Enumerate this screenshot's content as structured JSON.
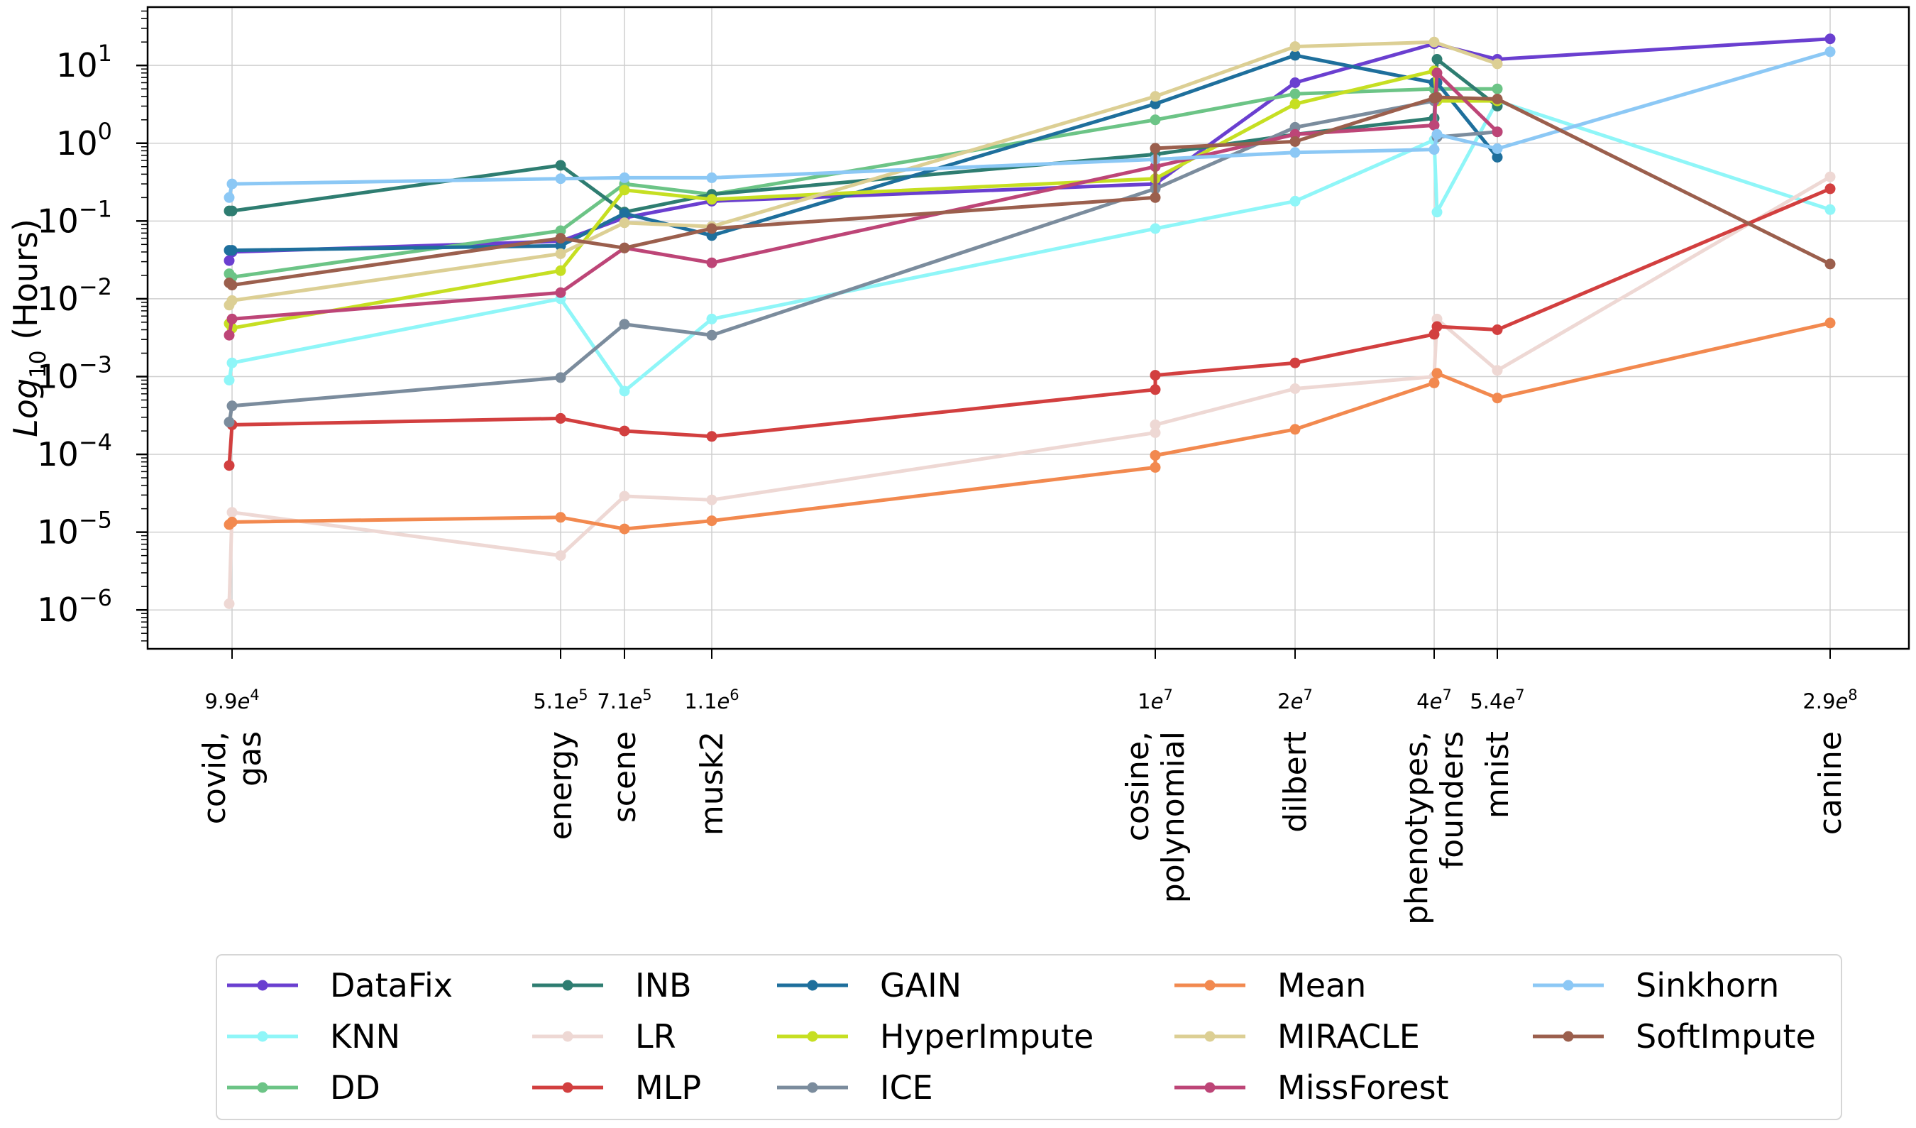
{
  "chart_data": {
    "type": "line",
    "title": "",
    "xlabel": "",
    "ylabel_main": "Log",
    "ylabel_sub": "10",
    "ylabel_rest": " (Hours)",
    "y_scale": "log",
    "ylim_exp": [
      -6.5,
      1.75
    ],
    "grid": true,
    "y_ticks": [
      {
        "exp": -6,
        "base": "10",
        "sup": "−6"
      },
      {
        "exp": -5,
        "base": "10",
        "sup": "−5"
      },
      {
        "exp": -4,
        "base": "10",
        "sup": "−4"
      },
      {
        "exp": -3,
        "base": "10",
        "sup": "−3"
      },
      {
        "exp": -2,
        "base": "10",
        "sup": "−2"
      },
      {
        "exp": -1,
        "base": "10",
        "sup": "−1"
      },
      {
        "exp": 0,
        "base": "10",
        "sup": "0"
      },
      {
        "exp": 1,
        "base": "10",
        "sup": "1"
      }
    ],
    "x_ticks": [
      {
        "pos": 0,
        "mant": "9.9",
        "exp": "4",
        "names": [
          "covid,",
          "gas"
        ]
      },
      {
        "pos": 1,
        "mant": "5.1",
        "exp": "5",
        "names": [
          "energy"
        ]
      },
      {
        "pos": 2,
        "mant": "7.1",
        "exp": "5",
        "names": [
          "scene"
        ]
      },
      {
        "pos": 3,
        "mant": "1.1",
        "exp": "6",
        "names": [
          "musk2"
        ]
      },
      {
        "pos": 4,
        "mant": "1",
        "exp": "7",
        "names": [
          "cosine,",
          "polynomial"
        ]
      },
      {
        "pos": 5,
        "mant": "2",
        "exp": "7",
        "names": [
          "dilbert"
        ]
      },
      {
        "pos": 6,
        "mant": "4",
        "exp": "7",
        "names": [
          "phenotypes,",
          "founders"
        ]
      },
      {
        "pos": 7,
        "mant": "5.4",
        "exp": "7",
        "names": [
          "mnist"
        ]
      },
      {
        "pos": 8,
        "mant": "2.9",
        "exp": "8",
        "names": [
          "canine"
        ]
      }
    ],
    "legend_position": "bottom-center",
    "series": [
      {
        "name": "DataFix",
        "color": "#6a3fd0",
        "points": [
          [
            -0.15,
            0.031
          ],
          [
            0,
            0.04
          ],
          [
            1,
            0.055
          ],
          [
            2,
            0.11
          ],
          [
            3,
            0.18
          ],
          [
            4,
            0.3
          ],
          [
            5,
            6
          ],
          [
            6,
            19
          ],
          [
            7,
            12
          ],
          [
            8,
            22
          ]
        ]
      },
      {
        "name": "KNN",
        "color": "#8ff6f8",
        "points": [
          [
            -0.15,
            0.0009
          ],
          [
            0,
            0.0015
          ],
          [
            1,
            0.01
          ],
          [
            2,
            0.00065
          ],
          [
            3,
            0.0055
          ],
          [
            4,
            0.08
          ],
          [
            5,
            0.18
          ],
          [
            6,
            1.1
          ],
          [
            6.15,
            0.13
          ],
          [
            7,
            3.5
          ],
          [
            8,
            0.14
          ]
        ]
      },
      {
        "name": "DD",
        "color": "#6cc486",
        "points": [
          [
            -0.15,
            0.021
          ],
          [
            0,
            0.019
          ],
          [
            1,
            0.075
          ],
          [
            2,
            0.3
          ],
          [
            3,
            0.22
          ],
          [
            4,
            2
          ],
          [
            5,
            4.3
          ],
          [
            6,
            5
          ],
          [
            7,
            5
          ]
        ]
      },
      {
        "name": "INB",
        "color": "#2e7d71",
        "points": [
          [
            -0.15,
            0.135
          ],
          [
            0,
            0.135
          ],
          [
            1,
            0.52
          ],
          [
            2,
            0.13
          ],
          [
            3,
            0.22
          ],
          [
            4,
            0.72
          ],
          [
            5,
            1.3
          ],
          [
            6,
            2.1
          ],
          [
            6.15,
            12
          ],
          [
            7,
            3
          ]
        ]
      },
      {
        "name": "LR",
        "color": "#eed8d4",
        "points": [
          [
            -0.15,
            1.2e-06
          ],
          [
            0,
            1.8e-05
          ],
          [
            1,
            5e-06
          ],
          [
            2,
            2.9e-05
          ],
          [
            3,
            2.6e-05
          ],
          [
            4,
            0.00019
          ],
          [
            4,
            0.00024
          ],
          [
            5,
            0.0007
          ],
          [
            6,
            0.001
          ],
          [
            6.15,
            0.0055
          ],
          [
            7,
            0.0012
          ],
          [
            8,
            0.37
          ]
        ]
      },
      {
        "name": "MLP",
        "color": "#d23f3f",
        "points": [
          [
            -0.15,
            7.2e-05
          ],
          [
            0,
            0.00024
          ],
          [
            1,
            0.00029
          ],
          [
            2,
            0.0002
          ],
          [
            3,
            0.00017
          ],
          [
            4,
            0.00068
          ],
          [
            4,
            0.00104
          ],
          [
            5,
            0.0015
          ],
          [
            6,
            0.0035
          ],
          [
            6.15,
            0.0044
          ],
          [
            7,
            0.004
          ],
          [
            8,
            0.26
          ]
        ]
      },
      {
        "name": "GAIN",
        "color": "#1e6f9c",
        "points": [
          [
            -0.15,
            0.042
          ],
          [
            0,
            0.042
          ],
          [
            1,
            0.048
          ],
          [
            2,
            0.125
          ],
          [
            3,
            0.065
          ],
          [
            4,
            3.2
          ],
          [
            5,
            13.5
          ],
          [
            6,
            6
          ],
          [
            6.15,
            6
          ],
          [
            7,
            0.66
          ]
        ]
      },
      {
        "name": "HyperImpute",
        "color": "#c6df22",
        "points": [
          [
            -0.15,
            0.0048
          ],
          [
            0,
            0.0042
          ],
          [
            1,
            0.023
          ],
          [
            2,
            0.25
          ],
          [
            3,
            0.19
          ],
          [
            4,
            0.35
          ],
          [
            5,
            3.2
          ],
          [
            6,
            8.5
          ],
          [
            6.15,
            3.5
          ],
          [
            7,
            3.5
          ]
        ]
      },
      {
        "name": "ICE",
        "color": "#7b8c9d",
        "points": [
          [
            -0.15,
            0.00026
          ],
          [
            0,
            0.00042
          ],
          [
            1,
            0.00097
          ],
          [
            2,
            0.0047
          ],
          [
            3,
            0.0034
          ],
          [
            4,
            0.26
          ],
          [
            5,
            1.6
          ],
          [
            6,
            3.5
          ],
          [
            6.15,
            1.2
          ],
          [
            7,
            1.4
          ]
        ]
      },
      {
        "name": "Mean",
        "color": "#f2894f",
        "points": [
          [
            -0.15,
            1.25e-05
          ],
          [
            0,
            1.35e-05
          ],
          [
            1,
            1.55e-05
          ],
          [
            2,
            1.1e-05
          ],
          [
            3,
            1.4e-05
          ],
          [
            4,
            6.8e-05
          ],
          [
            4,
            9.7e-05
          ],
          [
            5,
            0.00021
          ],
          [
            6,
            0.00083
          ],
          [
            6.15,
            0.0011
          ],
          [
            7,
            0.00053
          ],
          [
            8,
            0.0049
          ]
        ]
      },
      {
        "name": "MIRACLE",
        "color": "#dccf94",
        "points": [
          [
            -0.15,
            0.0083
          ],
          [
            0,
            0.0095
          ],
          [
            1,
            0.038
          ],
          [
            2,
            0.095
          ],
          [
            3,
            0.085
          ],
          [
            4,
            4
          ],
          [
            5,
            17.5
          ],
          [
            6,
            20
          ],
          [
            7,
            10.5
          ]
        ]
      },
      {
        "name": "MissForest",
        "color": "#bd4577",
        "points": [
          [
            -0.15,
            0.0034
          ],
          [
            0,
            0.0055
          ],
          [
            1,
            0.012
          ],
          [
            2,
            0.045
          ],
          [
            3,
            0.029
          ],
          [
            4,
            0.5
          ],
          [
            5,
            1.3
          ],
          [
            6,
            1.7
          ],
          [
            6.15,
            8
          ],
          [
            7,
            1.4
          ]
        ]
      },
      {
        "name": "Sinkhorn",
        "color": "#8cc8f5",
        "points": [
          [
            -0.15,
            0.2
          ],
          [
            0,
            0.3
          ],
          [
            1,
            0.35
          ],
          [
            2,
            0.36
          ],
          [
            3,
            0.36
          ],
          [
            4,
            0.62
          ],
          [
            5,
            0.76
          ],
          [
            6,
            0.83
          ],
          [
            6.15,
            1.3
          ],
          [
            7,
            0.85
          ],
          [
            8,
            15
          ]
        ]
      },
      {
        "name": "SoftImpute",
        "color": "#9b5f4d",
        "points": [
          [
            -0.15,
            0.016
          ],
          [
            0,
            0.015
          ],
          [
            1,
            0.06
          ],
          [
            2,
            0.045
          ],
          [
            3,
            0.08
          ],
          [
            4,
            0.2
          ],
          [
            4,
            0.86
          ],
          [
            5,
            1.05
          ],
          [
            6,
            3.8
          ],
          [
            6.15,
            3.9
          ],
          [
            7,
            3.7
          ],
          [
            8,
            0.028
          ]
        ]
      }
    ]
  }
}
